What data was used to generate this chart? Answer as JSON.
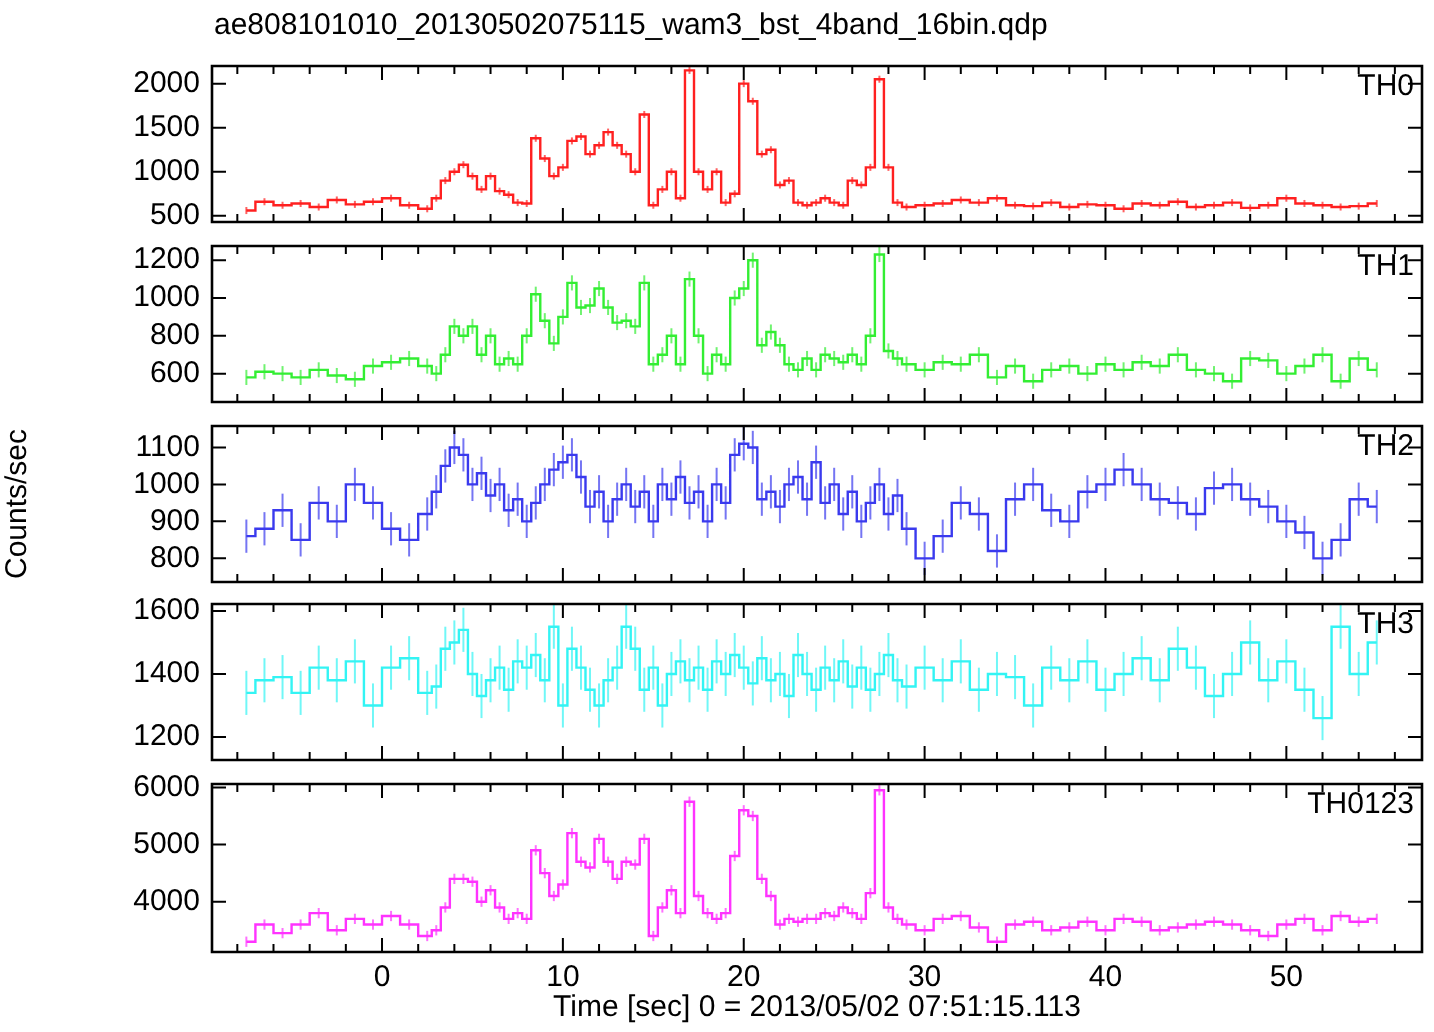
{
  "chart_data": [
    {
      "type": "step",
      "title": "ae808101010_20130502075115_wam3_bst_4band_16bin.qdp",
      "annotations": [
        "TH0"
      ],
      "marker": "none",
      "tick_labels": "y",
      "x": [
        -7.5,
        -6.5,
        -5.5,
        -4.5,
        -3.5,
        -2.5,
        -1.5,
        -0.5,
        0.5,
        1.5,
        2.5,
        3,
        3.5,
        4,
        4.5,
        5,
        5.5,
        6,
        6.5,
        7,
        7.5,
        8,
        8.5,
        9,
        9.5,
        10,
        10.5,
        11,
        11.5,
        12,
        12.5,
        13,
        13.5,
        14,
        14.5,
        15,
        15.5,
        16,
        16.5,
        17,
        17.5,
        18,
        18.5,
        19,
        19.5,
        20,
        20.5,
        21,
        21.5,
        22,
        22.5,
        23,
        23.5,
        24,
        24.5,
        25,
        25.5,
        26,
        26.5,
        27,
        27.5,
        28,
        28.5,
        29,
        30,
        31,
        32,
        33,
        34,
        35,
        36,
        37,
        38,
        39,
        40,
        41,
        42,
        43,
        44,
        45,
        46,
        47,
        48,
        49,
        50,
        51,
        52,
        53,
        54,
        55
      ],
      "xlim": [
        -9.4,
        57.5
      ],
      "xticks": [
        {
          "value": -8,
          "label": null
        },
        {
          "value": -6,
          "label": null
        },
        {
          "value": -4,
          "label": null
        },
        {
          "value": -2,
          "label": null
        },
        0,
        {
          "value": 2,
          "label": null
        },
        {
          "value": 4,
          "label": null
        },
        {
          "value": 6,
          "label": null
        },
        {
          "value": 8,
          "label": null
        },
        10,
        {
          "value": 12,
          "label": null
        },
        {
          "value": 14,
          "label": null
        },
        {
          "value": 16,
          "label": null
        },
        {
          "value": 18,
          "label": null
        },
        20,
        {
          "value": 22,
          "label": null
        },
        {
          "value": 24,
          "label": null
        },
        {
          "value": 26,
          "label": null
        },
        {
          "value": 28,
          "label": null
        },
        30,
        {
          "value": 32,
          "label": null
        },
        {
          "value": 34,
          "label": null
        },
        {
          "value": 36,
          "label": null
        },
        {
          "value": 38,
          "label": null
        },
        40,
        {
          "value": 42,
          "label": null
        },
        {
          "value": 44,
          "label": null
        },
        {
          "value": 46,
          "label": null
        },
        {
          "value": 48,
          "label": null
        },
        50,
        {
          "value": 52,
          "label": null
        },
        {
          "value": 54,
          "label": null
        },
        {
          "value": 56,
          "label": null
        }
      ],
      "ylim": [
        430,
        2200
      ],
      "yticks": [
        500,
        1000,
        1500,
        2000
      ],
      "series": [
        {
          "color": "#ff2020",
          "values": [
            560,
            660,
            620,
            640,
            600,
            680,
            630,
            660,
            700,
            620,
            580,
            700,
            900,
            1000,
            1080,
            950,
            800,
            950,
            780,
            740,
            650,
            640,
            1380,
            1150,
            950,
            1050,
            1350,
            1400,
            1200,
            1300,
            1450,
            1300,
            1200,
            1000,
            1650,
            620,
            800,
            1000,
            700,
            2150,
            1000,
            800,
            1000,
            650,
            750,
            2000,
            1800,
            1200,
            1250,
            850,
            900,
            650,
            620,
            650,
            700,
            650,
            620,
            900,
            850,
            1050,
            2050,
            1050,
            650,
            600,
            620,
            640,
            680,
            650,
            700,
            620,
            610,
            650,
            600,
            630,
            620,
            580,
            640,
            620,
            660,
            600,
            620,
            650,
            590,
            620,
            700,
            640,
            620,
            600,
            610,
            640
          ],
          "errors": [
            40,
            40,
            40,
            40,
            40,
            40,
            40,
            40,
            40,
            40,
            40,
            40,
            40,
            40,
            40,
            40,
            40,
            40,
            40,
            40,
            40,
            40,
            40,
            40,
            40,
            40,
            40,
            40,
            40,
            40,
            40,
            40,
            40,
            40,
            40,
            40,
            40,
            40,
            40,
            40,
            40,
            40,
            40,
            40,
            40,
            40,
            40,
            40,
            40,
            40,
            40,
            40,
            40,
            40,
            40,
            40,
            40,
            40,
            40,
            40,
            40,
            40,
            40,
            40,
            40,
            40,
            40,
            40,
            40,
            40,
            40,
            40,
            40,
            40,
            40,
            40,
            40,
            40,
            40,
            40,
            40,
            40,
            40,
            40,
            40,
            40,
            40,
            40,
            40,
            40
          ]
        }
      ]
    },
    {
      "type": "step",
      "annotations": [
        "TH1"
      ],
      "marker": "none",
      "tick_labels": "y",
      "x": [
        -7.5,
        -6.5,
        -5.5,
        -4.5,
        -3.5,
        -2.5,
        -1.5,
        -0.5,
        0.5,
        1.5,
        2.5,
        3,
        3.5,
        4,
        4.5,
        5,
        5.5,
        6,
        6.5,
        7,
        7.5,
        8,
        8.5,
        9,
        9.5,
        10,
        10.5,
        11,
        11.5,
        12,
        12.5,
        13,
        13.5,
        14,
        14.5,
        15,
        15.5,
        16,
        16.5,
        17,
        17.5,
        18,
        18.5,
        19,
        19.5,
        20,
        20.5,
        21,
        21.5,
        22,
        22.5,
        23,
        23.5,
        24,
        24.5,
        25,
        25.5,
        26,
        26.5,
        27,
        27.5,
        28,
        28.5,
        29,
        30,
        31,
        32,
        33,
        34,
        35,
        36,
        37,
        38,
        39,
        40,
        41,
        42,
        43,
        44,
        45,
        46,
        47,
        48,
        49,
        50,
        51,
        52,
        53,
        54,
        55
      ],
      "xlim": [
        -9.4,
        57.5
      ],
      "xticks": [
        {
          "value": -8,
          "label": null
        },
        {
          "value": -6,
          "label": null
        },
        {
          "value": -4,
          "label": null
        },
        {
          "value": -2,
          "label": null
        },
        0,
        {
          "value": 2,
          "label": null
        },
        {
          "value": 4,
          "label": null
        },
        {
          "value": 6,
          "label": null
        },
        {
          "value": 8,
          "label": null
        },
        10,
        {
          "value": 12,
          "label": null
        },
        {
          "value": 14,
          "label": null
        },
        {
          "value": 16,
          "label": null
        },
        {
          "value": 18,
          "label": null
        },
        20,
        {
          "value": 22,
          "label": null
        },
        {
          "value": 24,
          "label": null
        },
        {
          "value": 26,
          "label": null
        },
        {
          "value": 28,
          "label": null
        },
        30,
        {
          "value": 32,
          "label": null
        },
        {
          "value": 34,
          "label": null
        },
        {
          "value": 36,
          "label": null
        },
        {
          "value": 38,
          "label": null
        },
        40,
        {
          "value": 42,
          "label": null
        },
        {
          "value": 44,
          "label": null
        },
        {
          "value": 46,
          "label": null
        },
        {
          "value": 48,
          "label": null
        },
        50,
        {
          "value": 52,
          "label": null
        },
        {
          "value": 54,
          "label": null
        },
        {
          "value": 56,
          "label": null
        }
      ],
      "ylim": [
        450,
        1275
      ],
      "yticks": [
        600,
        800,
        1000,
        1200
      ],
      "series": [
        {
          "color": "#33ee33",
          "values": [
            580,
            610,
            600,
            580,
            620,
            590,
            570,
            640,
            660,
            680,
            640,
            600,
            700,
            850,
            800,
            850,
            700,
            800,
            650,
            680,
            650,
            800,
            1020,
            880,
            760,
            900,
            1080,
            950,
            960,
            1050,
            950,
            870,
            880,
            850,
            1080,
            650,
            700,
            800,
            650,
            1100,
            800,
            600,
            700,
            650,
            1000,
            1050,
            1200,
            750,
            820,
            750,
            650,
            620,
            680,
            620,
            700,
            680,
            660,
            700,
            650,
            800,
            1230,
            720,
            680,
            650,
            620,
            660,
            650,
            700,
            580,
            640,
            560,
            620,
            640,
            600,
            650,
            620,
            660,
            640,
            700,
            620,
            600,
            560,
            680,
            670,
            600,
            640,
            700,
            560,
            680,
            620
          ],
          "errors": [
            40,
            40,
            40,
            40,
            40,
            40,
            40,
            40,
            40,
            40,
            40,
            40,
            40,
            40,
            40,
            40,
            40,
            40,
            40,
            40,
            40,
            40,
            40,
            40,
            40,
            40,
            40,
            40,
            40,
            40,
            40,
            40,
            40,
            40,
            40,
            40,
            40,
            40,
            40,
            40,
            40,
            40,
            40,
            40,
            40,
            40,
            40,
            40,
            40,
            40,
            40,
            40,
            40,
            40,
            40,
            40,
            40,
            40,
            40,
            40,
            40,
            40,
            40,
            40,
            40,
            40,
            40,
            40,
            40,
            40,
            40,
            40,
            40,
            40,
            40,
            40,
            40,
            40,
            40,
            40,
            40,
            40,
            40,
            40,
            40,
            40,
            40,
            40,
            40,
            40
          ]
        }
      ]
    },
    {
      "type": "step",
      "annotations": [
        "TH2"
      ],
      "ylabel": "Counts/sec",
      "marker": "none",
      "tick_labels": "y",
      "x": [
        -7.5,
        -6.5,
        -5.5,
        -4.5,
        -3.5,
        -2.5,
        -1.5,
        -0.5,
        0.5,
        1.5,
        2.5,
        3,
        3.5,
        4,
        4.5,
        5,
        5.5,
        6,
        6.5,
        7,
        7.5,
        8,
        8.5,
        9,
        9.5,
        10,
        10.5,
        11,
        11.5,
        12,
        12.5,
        13,
        13.5,
        14,
        14.5,
        15,
        15.5,
        16,
        16.5,
        17,
        17.5,
        18,
        18.5,
        19,
        19.5,
        20,
        20.5,
        21,
        21.5,
        22,
        22.5,
        23,
        23.5,
        24,
        24.5,
        25,
        25.5,
        26,
        26.5,
        27,
        27.5,
        28,
        28.5,
        29,
        30,
        31,
        32,
        33,
        34,
        35,
        36,
        37,
        38,
        39,
        40,
        41,
        42,
        43,
        44,
        45,
        46,
        47,
        48,
        49,
        50,
        51,
        52,
        53,
        54,
        55
      ],
      "xlim": [
        -9.4,
        57.5
      ],
      "xticks": [
        {
          "value": -8,
          "label": null
        },
        {
          "value": -6,
          "label": null
        },
        {
          "value": -4,
          "label": null
        },
        {
          "value": -2,
          "label": null
        },
        0,
        {
          "value": 2,
          "label": null
        },
        {
          "value": 4,
          "label": null
        },
        {
          "value": 6,
          "label": null
        },
        {
          "value": 8,
          "label": null
        },
        10,
        {
          "value": 12,
          "label": null
        },
        {
          "value": 14,
          "label": null
        },
        {
          "value": 16,
          "label": null
        },
        {
          "value": 18,
          "label": null
        },
        20,
        {
          "value": 22,
          "label": null
        },
        {
          "value": 24,
          "label": null
        },
        {
          "value": 26,
          "label": null
        },
        {
          "value": 28,
          "label": null
        },
        30,
        {
          "value": 32,
          "label": null
        },
        {
          "value": 34,
          "label": null
        },
        {
          "value": 36,
          "label": null
        },
        {
          "value": 38,
          "label": null
        },
        40,
        {
          "value": 42,
          "label": null
        },
        {
          "value": 44,
          "label": null
        },
        {
          "value": 46,
          "label": null
        },
        {
          "value": 48,
          "label": null
        },
        50,
        {
          "value": 52,
          "label": null
        },
        {
          "value": 54,
          "label": null
        },
        {
          "value": 56,
          "label": null
        }
      ],
      "ylim": [
        736,
        1158
      ],
      "yticks": [
        800,
        900,
        1000,
        1100
      ],
      "series": [
        {
          "color": "#3a3aee",
          "values": [
            860,
            880,
            930,
            850,
            950,
            900,
            1000,
            950,
            880,
            850,
            920,
            980,
            1050,
            1100,
            1080,
            1000,
            1030,
            970,
            1000,
            930,
            960,
            900,
            950,
            1000,
            1040,
            1060,
            1080,
            1020,
            940,
            980,
            900,
            960,
            1000,
            940,
            980,
            900,
            1000,
            960,
            1020,
            950,
            980,
            900,
            1000,
            950,
            1080,
            1110,
            1100,
            960,
            980,
            940,
            1000,
            1020,
            960,
            1060,
            950,
            1000,
            920,
            980,
            900,
            950,
            1000,
            920,
            970,
            880,
            800,
            860,
            950,
            920,
            820,
            960,
            1000,
            930,
            900,
            980,
            1000,
            1040,
            1000,
            960,
            950,
            920,
            990,
            1000,
            960,
            940,
            900,
            870,
            800,
            850,
            960,
            940
          ],
          "errors": [
            45,
            45,
            45,
            45,
            45,
            45,
            45,
            45,
            45,
            45,
            45,
            45,
            45,
            45,
            45,
            45,
            45,
            45,
            45,
            45,
            45,
            45,
            45,
            45,
            45,
            45,
            45,
            45,
            45,
            45,
            45,
            45,
            45,
            45,
            45,
            45,
            45,
            45,
            45,
            45,
            45,
            45,
            45,
            45,
            45,
            45,
            45,
            45,
            45,
            45,
            45,
            45,
            45,
            45,
            45,
            45,
            45,
            45,
            45,
            45,
            45,
            45,
            45,
            45,
            45,
            45,
            45,
            45,
            45,
            45,
            45,
            45,
            45,
            45,
            45,
            45,
            45,
            45,
            45,
            45,
            45,
            45,
            45,
            45,
            45,
            45,
            45,
            45,
            45,
            45
          ]
        }
      ]
    },
    {
      "type": "step",
      "annotations": [
        "TH3"
      ],
      "marker": "none",
      "tick_labels": "y",
      "x": [
        -7.5,
        -6.5,
        -5.5,
        -4.5,
        -3.5,
        -2.5,
        -1.5,
        -0.5,
        0.5,
        1.5,
        2.5,
        3,
        3.5,
        4,
        4.5,
        5,
        5.5,
        6,
        6.5,
        7,
        7.5,
        8,
        8.5,
        9,
        9.5,
        10,
        10.5,
        11,
        11.5,
        12,
        12.5,
        13,
        13.5,
        14,
        14.5,
        15,
        15.5,
        16,
        16.5,
        17,
        17.5,
        18,
        18.5,
        19,
        19.5,
        20,
        20.5,
        21,
        21.5,
        22,
        22.5,
        23,
        23.5,
        24,
        24.5,
        25,
        25.5,
        26,
        26.5,
        27,
        27.5,
        28,
        28.5,
        29,
        30,
        31,
        32,
        33,
        34,
        35,
        36,
        37,
        38,
        39,
        40,
        41,
        42,
        43,
        44,
        45,
        46,
        47,
        48,
        49,
        50,
        51,
        52,
        53,
        54,
        55
      ],
      "xlim": [
        -9.4,
        57.5
      ],
      "xticks": [
        {
          "value": -8,
          "label": null
        },
        {
          "value": -6,
          "label": null
        },
        {
          "value": -4,
          "label": null
        },
        {
          "value": -2,
          "label": null
        },
        0,
        {
          "value": 2,
          "label": null
        },
        {
          "value": 4,
          "label": null
        },
        {
          "value": 6,
          "label": null
        },
        {
          "value": 8,
          "label": null
        },
        10,
        {
          "value": 12,
          "label": null
        },
        {
          "value": 14,
          "label": null
        },
        {
          "value": 16,
          "label": null
        },
        {
          "value": 18,
          "label": null
        },
        20,
        {
          "value": 22,
          "label": null
        },
        {
          "value": 24,
          "label": null
        },
        {
          "value": 26,
          "label": null
        },
        {
          "value": 28,
          "label": null
        },
        30,
        {
          "value": 32,
          "label": null
        },
        {
          "value": 34,
          "label": null
        },
        {
          "value": 36,
          "label": null
        },
        {
          "value": 38,
          "label": null
        },
        40,
        {
          "value": 42,
          "label": null
        },
        {
          "value": 44,
          "label": null
        },
        {
          "value": 46,
          "label": null
        },
        {
          "value": 48,
          "label": null
        },
        50,
        {
          "value": 52,
          "label": null
        },
        {
          "value": 54,
          "label": null
        },
        {
          "value": 56,
          "label": null
        }
      ],
      "ylim": [
        1127,
        1622
      ],
      "yticks": [
        1200,
        1400,
        1600
      ],
      "series": [
        {
          "color": "#33f4f4",
          "values": [
            1340,
            1380,
            1390,
            1340,
            1420,
            1380,
            1440,
            1300,
            1420,
            1450,
            1340,
            1360,
            1480,
            1500,
            1540,
            1400,
            1330,
            1380,
            1420,
            1350,
            1440,
            1420,
            1460,
            1380,
            1550,
            1300,
            1480,
            1420,
            1350,
            1300,
            1380,
            1420,
            1550,
            1480,
            1350,
            1420,
            1300,
            1400,
            1440,
            1380,
            1420,
            1350,
            1440,
            1400,
            1460,
            1420,
            1370,
            1450,
            1380,
            1400,
            1330,
            1460,
            1400,
            1350,
            1420,
            1380,
            1440,
            1360,
            1420,
            1350,
            1400,
            1460,
            1380,
            1360,
            1420,
            1380,
            1440,
            1350,
            1400,
            1390,
            1300,
            1420,
            1380,
            1440,
            1350,
            1400,
            1450,
            1380,
            1480,
            1420,
            1330,
            1400,
            1500,
            1380,
            1440,
            1350,
            1260,
            1550,
            1400,
            1500
          ],
          "errors": [
            70,
            70,
            70,
            70,
            70,
            70,
            70,
            70,
            70,
            70,
            70,
            70,
            70,
            70,
            70,
            70,
            70,
            70,
            70,
            70,
            70,
            70,
            70,
            70,
            70,
            70,
            70,
            70,
            70,
            70,
            70,
            70,
            70,
            70,
            70,
            70,
            70,
            70,
            70,
            70,
            70,
            70,
            70,
            70,
            70,
            70,
            70,
            70,
            70,
            70,
            70,
            70,
            70,
            70,
            70,
            70,
            70,
            70,
            70,
            70,
            70,
            70,
            70,
            70,
            70,
            70,
            70,
            70,
            70,
            70,
            70,
            70,
            70,
            70,
            70,
            70,
            70,
            70,
            70,
            70,
            70,
            70,
            70,
            70,
            70,
            70,
            70,
            70,
            70,
            70
          ]
        }
      ]
    },
    {
      "type": "step",
      "annotations": [
        "TH0123"
      ],
      "xlabel": "Time [sec] 0 = 2013/05/02 07:51:15.113",
      "marker": "none",
      "x": [
        -7.5,
        -6.5,
        -5.5,
        -4.5,
        -3.5,
        -2.5,
        -1.5,
        -0.5,
        0.5,
        1.5,
        2.5,
        3,
        3.5,
        4,
        4.5,
        5,
        5.5,
        6,
        6.5,
        7,
        7.5,
        8,
        8.5,
        9,
        9.5,
        10,
        10.5,
        11,
        11.5,
        12,
        12.5,
        13,
        13.5,
        14,
        14.5,
        15,
        15.5,
        16,
        16.5,
        17,
        17.5,
        18,
        18.5,
        19,
        19.5,
        20,
        20.5,
        21,
        21.5,
        22,
        22.5,
        23,
        23.5,
        24,
        24.5,
        25,
        25.5,
        26,
        26.5,
        27,
        27.5,
        28,
        28.5,
        29,
        30,
        31,
        32,
        33,
        34,
        35,
        36,
        37,
        38,
        39,
        40,
        41,
        42,
        43,
        44,
        45,
        46,
        47,
        48,
        49,
        50,
        51,
        52,
        53,
        54,
        55
      ],
      "xlim": [
        -9.4,
        57.5
      ],
      "xticks": [
        {
          "value": -8,
          "label": null
        },
        {
          "value": -6,
          "label": null
        },
        {
          "value": -4,
          "label": null
        },
        {
          "value": -2,
          "label": null
        },
        0,
        {
          "value": 2,
          "label": null
        },
        {
          "value": 4,
          "label": null
        },
        {
          "value": 6,
          "label": null
        },
        {
          "value": 8,
          "label": null
        },
        10,
        {
          "value": 12,
          "label": null
        },
        {
          "value": 14,
          "label": null
        },
        {
          "value": 16,
          "label": null
        },
        {
          "value": 18,
          "label": null
        },
        20,
        {
          "value": 22,
          "label": null
        },
        {
          "value": 24,
          "label": null
        },
        {
          "value": 26,
          "label": null
        },
        {
          "value": 28,
          "label": null
        },
        30,
        {
          "value": 32,
          "label": null
        },
        {
          "value": 34,
          "label": null
        },
        {
          "value": 36,
          "label": null
        },
        {
          "value": 38,
          "label": null
        },
        40,
        {
          "value": 42,
          "label": null
        },
        {
          "value": 44,
          "label": null
        },
        {
          "value": 46,
          "label": null
        },
        {
          "value": 48,
          "label": null
        },
        50,
        {
          "value": 52,
          "label": null
        },
        {
          "value": 54,
          "label": null
        },
        {
          "value": 56,
          "label": null
        }
      ],
      "ylim": [
        3120,
        6060
      ],
      "yticks": [
        4000,
        5000,
        6000
      ],
      "series": [
        {
          "color": "#ff33ff",
          "values": [
            3300,
            3600,
            3450,
            3600,
            3800,
            3500,
            3700,
            3600,
            3750,
            3600,
            3400,
            3500,
            3900,
            4400,
            4400,
            4350,
            4000,
            4200,
            3900,
            3700,
            3800,
            3700,
            4900,
            4500,
            4100,
            4300,
            5200,
            4700,
            4600,
            5100,
            4700,
            4400,
            4700,
            4650,
            5100,
            3400,
            3900,
            4200,
            3800,
            5750,
            4100,
            3800,
            3700,
            3800,
            4800,
            5600,
            5500,
            4400,
            4100,
            3600,
            3700,
            3650,
            3700,
            3700,
            3800,
            3750,
            3900,
            3800,
            3700,
            4150,
            5950,
            3900,
            3700,
            3600,
            3500,
            3700,
            3750,
            3550,
            3300,
            3600,
            3650,
            3500,
            3550,
            3650,
            3500,
            3700,
            3650,
            3500,
            3550,
            3600,
            3650,
            3600,
            3500,
            3400,
            3600,
            3700,
            3500,
            3750,
            3650,
            3700
          ],
          "errors": [
            90,
            90,
            90,
            90,
            90,
            90,
            90,
            90,
            90,
            90,
            90,
            90,
            90,
            90,
            90,
            90,
            90,
            90,
            90,
            90,
            90,
            90,
            90,
            90,
            90,
            90,
            90,
            90,
            90,
            90,
            90,
            90,
            90,
            90,
            90,
            90,
            90,
            90,
            90,
            90,
            90,
            90,
            90,
            90,
            90,
            90,
            90,
            90,
            90,
            90,
            90,
            90,
            90,
            90,
            90,
            90,
            90,
            90,
            90,
            90,
            90,
            90,
            90,
            90,
            90,
            90,
            90,
            90,
            90,
            90,
            90,
            90,
            90,
            90,
            90,
            90,
            90,
            90,
            90,
            90,
            90,
            90,
            90,
            90,
            90,
            90,
            90,
            90,
            90,
            90
          ]
        }
      ]
    }
  ]
}
